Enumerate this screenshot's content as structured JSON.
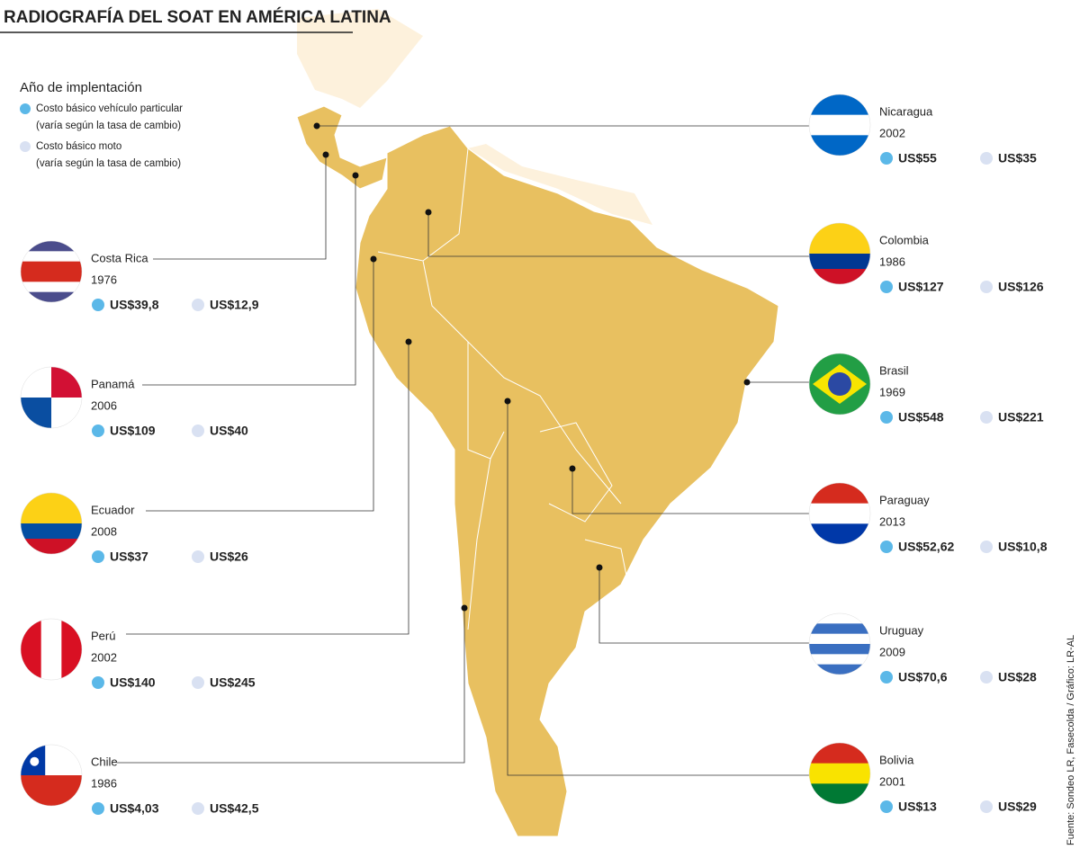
{
  "title": "RADIOGRAFÍA DEL SOAT EN AMÉRICA LATINA",
  "legend": {
    "title": "Año de implentación",
    "items": [
      {
        "label": "Costo básico vehículo particular",
        "note": "(varía según la tasa de cambio)"
      },
      {
        "label": "Costo básico moto",
        "note": "(varía según la tasa de cambio)"
      }
    ]
  },
  "countries": [
    {
      "name": "Costa Rica",
      "year": "1976",
      "car": "US$39,8",
      "moto": "US$12,9"
    },
    {
      "name": "Panamá",
      "year": "2006",
      "car": "US$109",
      "moto": "US$40"
    },
    {
      "name": "Ecuador",
      "year": "2008",
      "car": "US$37",
      "moto": "US$26"
    },
    {
      "name": "Perú",
      "year": "2002",
      "car": "US$140",
      "moto": "US$245"
    },
    {
      "name": "Chile",
      "year": "1986",
      "car": "US$4,03",
      "moto": "US$42,5"
    },
    {
      "name": "Nicaragua",
      "year": "2002",
      "car": "US$55",
      "moto": "US$35"
    },
    {
      "name": "Colombia",
      "year": "1986",
      "car": "US$127",
      "moto": "US$126"
    },
    {
      "name": "Brasil",
      "year": "1969",
      "car": "US$548",
      "moto": "US$221"
    },
    {
      "name": "Paraguay",
      "year": "2013",
      "car": "US$52,62",
      "moto": "US$10,8"
    },
    {
      "name": "Uruguay",
      "year": "2009",
      "car": "US$70,6",
      "moto": "US$28"
    },
    {
      "name": "Bolivia",
      "year": "2001",
      "car": "US$13",
      "moto": "US$29"
    }
  ],
  "source": "Fuente: Sondeo LR, Fasecolda / Gráfico: LR-AL"
}
